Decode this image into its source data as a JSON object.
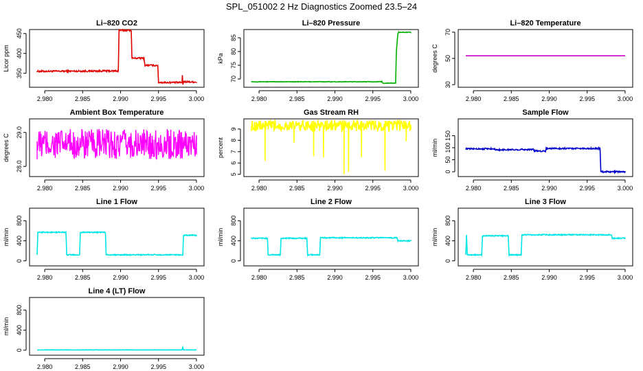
{
  "title": "SPL_051002  2 Hz Diagnostics Zoomed 23.5–24",
  "chart_data": [
    {
      "type": "line",
      "title": "Li–820 CO2",
      "ylabel": "Licor ppm",
      "xlabel": "",
      "color": "#e00000",
      "xlim": [
        2.978,
        3.001
      ],
      "ylim": [
        315,
        460
      ],
      "x_ticks": [
        "2.980",
        "2.985",
        "2.990",
        "2.995",
        "3.000"
      ],
      "y_ticks": [
        "350",
        "400",
        "450"
      ],
      "noise": 2,
      "series": [
        {
          "x": [
            2.979,
            2.9897,
            2.9898,
            2.9914,
            2.9915,
            2.9931,
            2.9932,
            2.9949,
            2.995,
            2.9981,
            2.99815,
            2.9982,
            2.9983,
            3.0
          ],
          "y": [
            355,
            356,
            458,
            458,
            388,
            388,
            370,
            370,
            327,
            327,
            346,
            322,
            329,
            328
          ]
        }
      ]
    },
    {
      "type": "line",
      "title": "Li–820 Pressure",
      "ylabel": "kPa",
      "xlabel": "",
      "color": "#00b000",
      "xlim": [
        2.978,
        3.001
      ],
      "ylim": [
        67,
        88
      ],
      "x_ticks": [
        "2.980",
        "2.985",
        "2.990",
        "2.995",
        "3.000"
      ],
      "y_ticks": [
        "70",
        "75",
        "80",
        "85"
      ],
      "noise": 0.1,
      "series": [
        {
          "x": [
            2.979,
            2.9962,
            2.9963,
            2.998,
            2.9981,
            2.9983,
            2.9984,
            3.0
          ],
          "y": [
            69,
            69,
            68.5,
            68.5,
            80,
            86.5,
            87,
            87
          ]
        }
      ]
    },
    {
      "type": "line",
      "title": "Li–820 Temperature",
      "ylabel": "degrees C",
      "xlabel": "",
      "color": "#cc00cc",
      "xlim": [
        2.978,
        3.001
      ],
      "ylim": [
        28,
        72
      ],
      "x_ticks": [
        "2.980",
        "2.985",
        "2.990",
        "2.995",
        "3.000"
      ],
      "y_ticks": [
        "30",
        "50",
        "70"
      ],
      "noise": 0,
      "series": [
        {
          "x": [
            2.979,
            3.0
          ],
          "y": [
            52,
            52
          ]
        }
      ]
    },
    {
      "type": "line",
      "title": "Ambient Box Temperature",
      "ylabel": "degrees C",
      "xlabel": "",
      "color": "#ff00ff",
      "xlim": [
        2.978,
        3.001
      ],
      "ylim": [
        27.7,
        29.4
      ],
      "x_ticks": [
        "2.980",
        "2.985",
        "2.990",
        "2.995",
        "3.000"
      ],
      "y_ticks": [
        "28.0",
        "29.0"
      ],
      "noise": 0.45,
      "series": [
        {
          "x": [
            2.979,
            3.0
          ],
          "y": [
            28.65,
            28.65
          ]
        }
      ]
    },
    {
      "type": "line",
      "title": "Gas Stream RH",
      "ylabel": "percent",
      "xlabel": "",
      "color": "#ffff00",
      "xlim": [
        2.978,
        3.001
      ],
      "ylim": [
        4.8,
        9.9
      ],
      "x_ticks": [
        "2.980",
        "2.985",
        "2.990",
        "2.995",
        "3.000"
      ],
      "y_ticks": [
        "5",
        "6",
        "7",
        "8",
        "9"
      ],
      "noise": 0.5,
      "spikes": [
        [
          2.9808,
          6.2
        ],
        [
          2.9846,
          7.8
        ],
        [
          2.9872,
          6.6
        ],
        [
          2.9885,
          6.5
        ],
        [
          2.9912,
          5.0
        ],
        [
          2.9918,
          5.2
        ],
        [
          2.9935,
          6.5
        ],
        [
          2.9966,
          5.3
        ],
        [
          2.9994,
          7.9
        ]
      ],
      "series": [
        {
          "x": [
            2.979,
            3.0
          ],
          "y": [
            9.3,
            9.3
          ]
        }
      ]
    },
    {
      "type": "line",
      "title": "Sample Flow",
      "ylabel": "ml/min",
      "xlabel": "",
      "color": "#0000cc",
      "xlim": [
        2.978,
        3.001
      ],
      "ylim": [
        -20,
        220
      ],
      "x_ticks": [
        "2.980",
        "2.985",
        "2.990",
        "2.995",
        "3.000"
      ],
      "y_ticks": [
        "0",
        "50",
        "100",
        "150"
      ],
      "noise": 3,
      "series": [
        {
          "x": [
            2.979,
            2.9828,
            2.9829,
            2.9879,
            2.988,
            2.9895,
            2.9896,
            2.9967,
            2.9968,
            3.0
          ],
          "y": [
            95,
            96,
            91,
            93,
            87,
            86,
            97,
            97,
            0,
            0
          ]
        }
      ]
    },
    {
      "type": "line",
      "title": "Line 1 Flow",
      "ylabel": "ml/min",
      "xlabel": "",
      "color": "#00e5e5",
      "xlim": [
        2.978,
        3.001
      ],
      "ylim": [
        -100,
        1050
      ],
      "x_ticks": [
        "2.980",
        "2.985",
        "2.990",
        "2.995",
        "3.000"
      ],
      "y_ticks": [
        "0",
        "400",
        "800"
      ],
      "noise": 10,
      "series": [
        {
          "x": [
            2.979,
            2.9791,
            2.9828,
            2.9829,
            2.9846,
            2.9847,
            2.988,
            2.9881,
            2.9982,
            2.9983,
            3.0
          ],
          "y": [
            130,
            570,
            570,
            120,
            120,
            570,
            570,
            120,
            120,
            510,
            510
          ]
        }
      ]
    },
    {
      "type": "line",
      "title": "Line 2 Flow",
      "ylabel": "ml/min",
      "xlabel": "",
      "color": "#00e5e5",
      "xlim": [
        2.978,
        3.001
      ],
      "ylim": [
        -100,
        1050
      ],
      "x_ticks": [
        "2.980",
        "2.985",
        "2.990",
        "2.995",
        "3.000"
      ],
      "y_ticks": [
        "0",
        "400",
        "800"
      ],
      "noise": 10,
      "series": [
        {
          "x": [
            2.979,
            2.9811,
            2.9812,
            2.9828,
            2.9829,
            2.9863,
            2.9864,
            2.988,
            2.9881,
            2.9982,
            2.9983,
            3.0
          ],
          "y": [
            450,
            450,
            120,
            120,
            450,
            450,
            120,
            120,
            460,
            460,
            400,
            400
          ]
        }
      ]
    },
    {
      "type": "line",
      "title": "Line 3 Flow",
      "ylabel": "ml/min",
      "xlabel": "",
      "color": "#00e5e5",
      "xlim": [
        2.978,
        3.001
      ],
      "ylim": [
        -100,
        1050
      ],
      "x_ticks": [
        "2.980",
        "2.985",
        "2.990",
        "2.995",
        "3.000"
      ],
      "y_ticks": [
        "0",
        "400",
        "800"
      ],
      "noise": 10,
      "series": [
        {
          "x": [
            2.979,
            2.9791,
            2.9792,
            2.9811,
            2.9812,
            2.9846,
            2.9847,
            2.9863,
            2.9864,
            2.9982,
            2.9983,
            3.0
          ],
          "y": [
            130,
            510,
            120,
            120,
            500,
            500,
            120,
            120,
            520,
            520,
            450,
            450
          ]
        }
      ]
    },
    {
      "type": "line",
      "title": "Line 4 (LT) Flow",
      "ylabel": "ml/min",
      "xlabel": "",
      "color": "#00e5e5",
      "xlim": [
        2.978,
        3.001
      ],
      "ylim": [
        -100,
        1050
      ],
      "x_ticks": [
        "2.980",
        "2.985",
        "2.990",
        "2.995",
        "3.000"
      ],
      "y_ticks": [
        "0",
        "400",
        "800"
      ],
      "noise": 3,
      "series": [
        {
          "x": [
            2.979,
            2.9981,
            2.9982,
            2.9983,
            3.0
          ],
          "y": [
            5,
            5,
            60,
            5,
            5
          ]
        }
      ]
    }
  ]
}
